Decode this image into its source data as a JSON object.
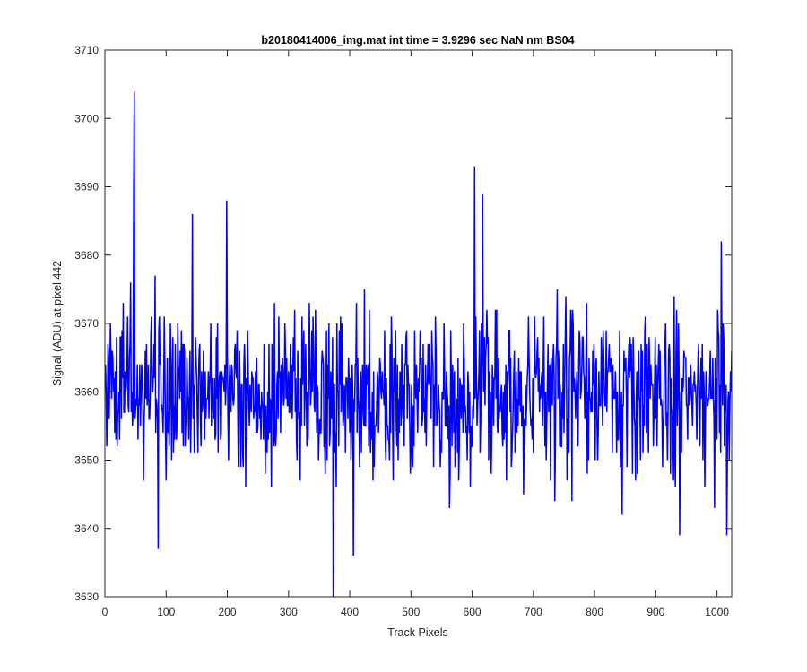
{
  "chart_data": {
    "type": "line",
    "title": "b20180414006_img.mat int time = 3.9296 sec  NaN nm BS04",
    "xlabel": "Track Pixels",
    "ylabel": "Signal (ADU) at pixel 442",
    "xlim": [
      0,
      1024
    ],
    "ylim": [
      3630,
      3710
    ],
    "xticks": [
      0,
      100,
      200,
      300,
      400,
      500,
      600,
      700,
      800,
      900,
      1000
    ],
    "yticks": [
      3630,
      3640,
      3650,
      3660,
      3670,
      3680,
      3690,
      3700,
      3710
    ],
    "grid": false,
    "legend": false,
    "line_color": "#0000ff",
    "n_points": 1024,
    "baseline": 3660,
    "noise_std": 6,
    "notable_points": [
      {
        "x": 47,
        "y": 3704
      },
      {
        "x": 46,
        "y": 3689
      },
      {
        "x": 603,
        "y": 3693
      },
      {
        "x": 616,
        "y": 3689
      },
      {
        "x": 198,
        "y": 3688
      },
      {
        "x": 142,
        "y": 3686
      },
      {
        "x": 372,
        "y": 3630
      },
      {
        "x": 86,
        "y": 3637
      },
      {
        "x": 405,
        "y": 3636
      },
      {
        "x": 938,
        "y": 3639
      },
      {
        "x": 1015,
        "y": 3639
      }
    ]
  }
}
